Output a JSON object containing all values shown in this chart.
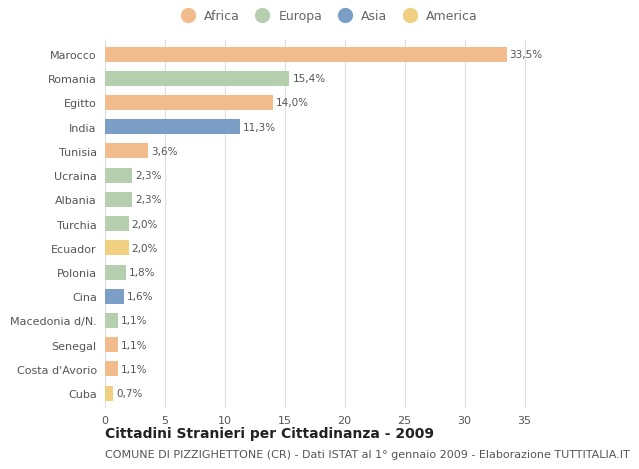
{
  "countries": [
    "Marocco",
    "Romania",
    "Egitto",
    "India",
    "Tunisia",
    "Ucraina",
    "Albania",
    "Turchia",
    "Ecuador",
    "Polonia",
    "Cina",
    "Macedonia d/N.",
    "Senegal",
    "Costa d'Avorio",
    "Cuba"
  ],
  "values": [
    33.5,
    15.4,
    14.0,
    11.3,
    3.6,
    2.3,
    2.3,
    2.0,
    2.0,
    1.8,
    1.6,
    1.1,
    1.1,
    1.1,
    0.7
  ],
  "labels": [
    "33,5%",
    "15,4%",
    "14,0%",
    "11,3%",
    "3,6%",
    "2,3%",
    "2,3%",
    "2,0%",
    "2,0%",
    "1,8%",
    "1,6%",
    "1,1%",
    "1,1%",
    "1,1%",
    "0,7%"
  ],
  "bar_colors": [
    "#F2BC8D",
    "#B5CEAD",
    "#F2BC8D",
    "#7A9EC5",
    "#F2BC8D",
    "#B5CEAD",
    "#B5CEAD",
    "#B5CEAD",
    "#F0D080",
    "#B5CEAD",
    "#7A9EC5",
    "#B5CEAD",
    "#F2BC8D",
    "#F2BC8D",
    "#F0D080"
  ],
  "legend_marker_colors": [
    "#F2BC8D",
    "#B5CEAD",
    "#7A9EC5",
    "#F0D080"
  ],
  "legend_labels": [
    "Africa",
    "Europa",
    "Asia",
    "America"
  ],
  "title": "Cittadini Stranieri per Cittadinanza - 2009",
  "subtitle": "COMUNE DI PIZZIGHETTONE (CR) - Dati ISTAT al 1° gennaio 2009 - Elaborazione TUTTITALIA.IT",
  "xlim": [
    0,
    37
  ],
  "xticks": [
    0,
    5,
    10,
    15,
    20,
    25,
    30,
    35
  ],
  "background_color": "#FFFFFF",
  "grid_color": "#DDDDDD",
  "label_fontsize": 7.5,
  "tick_fontsize": 8,
  "legend_fontsize": 9,
  "title_fontsize": 10,
  "subtitle_fontsize": 8
}
